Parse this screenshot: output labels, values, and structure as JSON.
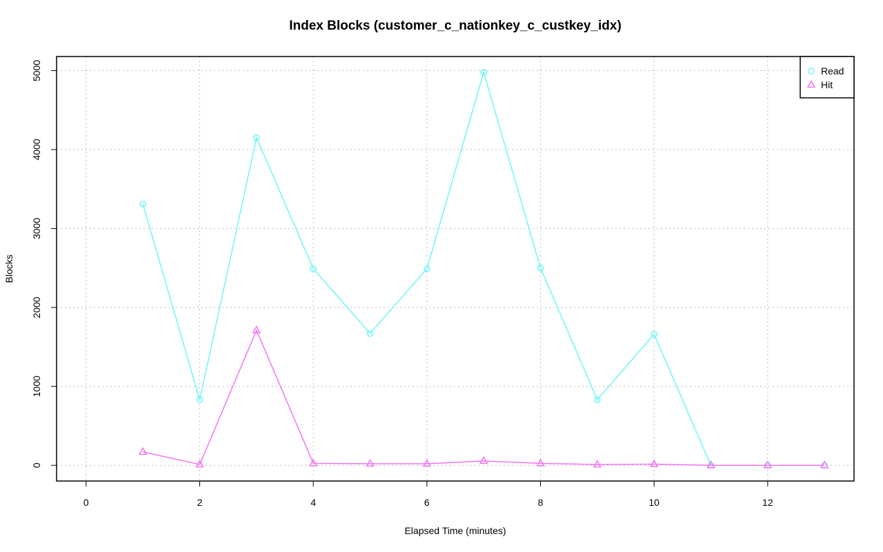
{
  "chart_data": {
    "type": "line",
    "title": "Index Blocks (customer_c_nationkey_c_custkey_idx)",
    "x_label": "Elapsed Time (minutes)",
    "y_label": "Blocks",
    "x": [
      1,
      2,
      3,
      4,
      5,
      6,
      7,
      8,
      9,
      10,
      11,
      12,
      13
    ],
    "series": [
      {
        "name": "Read",
        "color": "#6ff5f5",
        "marker": "circle",
        "values": [
          3310,
          830,
          4150,
          2490,
          1670,
          2490,
          4980,
          2500,
          830,
          1660,
          0,
          0,
          0
        ]
      },
      {
        "name": "Hit",
        "color": "#f275f2",
        "marker": "triangle",
        "values": [
          170,
          10,
          1710,
          25,
          20,
          20,
          55,
          25,
          10,
          15,
          0,
          0,
          0
        ]
      }
    ],
    "xlim": [
      -0.52,
      13.52
    ],
    "xticks": [
      0,
      2,
      4,
      6,
      8,
      10,
      12
    ],
    "ylim": [
      -199,
      5179
    ],
    "yticks": [
      0,
      1000,
      2000,
      3000,
      4000,
      5000
    ],
    "grid": true,
    "legend": "top-right"
  }
}
